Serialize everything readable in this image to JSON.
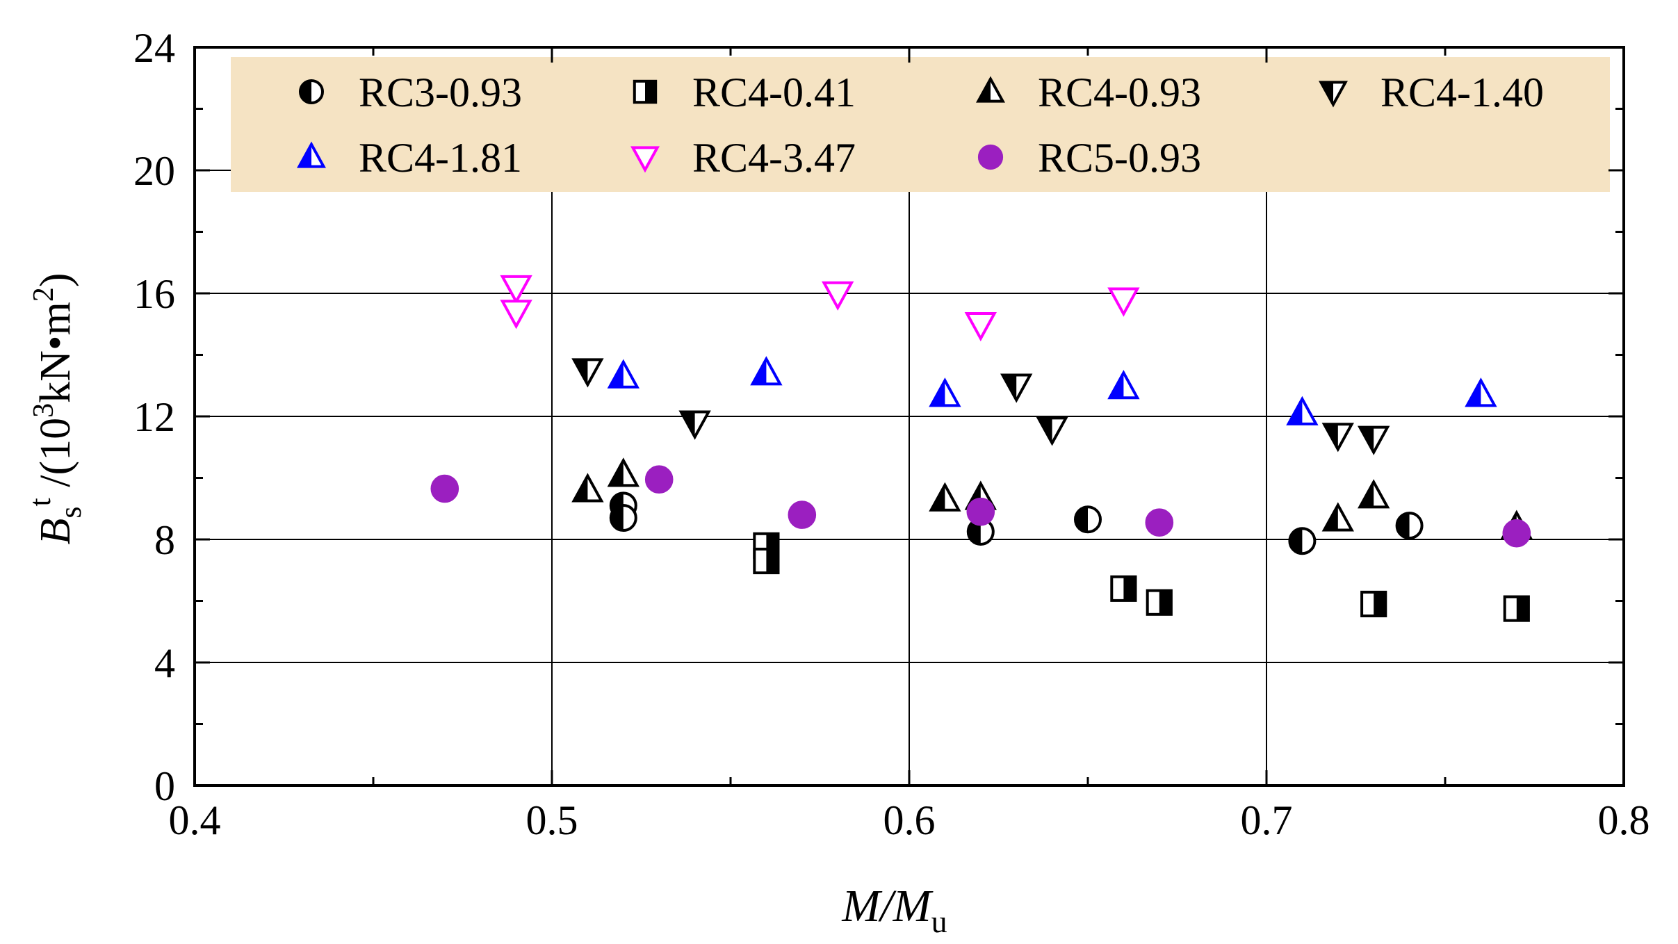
{
  "chart_data": {
    "type": "scatter",
    "title": "",
    "xlabel": {
      "main": "M/M",
      "sub": "u"
    },
    "ylabel": {
      "main": "B",
      "sub": "s",
      "sup": "t",
      "unit_prefix": " /(10",
      "unit_exp": "3",
      "unit_mid": "kN",
      "unit_dot": "•",
      "unit_m": "m",
      "unit_m_exp": "2",
      "unit_close": ")"
    },
    "xlim": [
      0.4,
      0.8
    ],
    "ylim": [
      0,
      24
    ],
    "xticks": [
      0.4,
      0.5,
      0.6,
      0.7,
      0.8
    ],
    "xtick_labels": [
      "0.4",
      "0.5",
      "0.6",
      "0.7",
      "0.8"
    ],
    "yticks": [
      0,
      4,
      8,
      12,
      16,
      20,
      24
    ],
    "ytick_labels": [
      "0",
      "4",
      "8",
      "12",
      "16",
      "20",
      "24"
    ],
    "grid": true,
    "legend_position": "top",
    "series": [
      {
        "name": "RC3-0.93",
        "marker": "circle-half",
        "color": "#000000",
        "points": [
          [
            0.52,
            9.1
          ],
          [
            0.52,
            8.7
          ],
          [
            0.62,
            8.25
          ],
          [
            0.65,
            8.65
          ],
          [
            0.71,
            7.95
          ],
          [
            0.74,
            8.45
          ]
        ]
      },
      {
        "name": "RC4-0.41",
        "marker": "square-half",
        "color": "#000000",
        "points": [
          [
            0.56,
            7.8
          ],
          [
            0.56,
            7.3
          ],
          [
            0.66,
            6.4
          ],
          [
            0.67,
            5.95
          ],
          [
            0.73,
            5.9
          ],
          [
            0.77,
            5.75
          ]
        ]
      },
      {
        "name": "RC4-0.93",
        "marker": "triangle-up-half",
        "color": "#000000",
        "points": [
          [
            0.51,
            9.6
          ],
          [
            0.52,
            10.1
          ],
          [
            0.61,
            9.3
          ],
          [
            0.62,
            9.35
          ],
          [
            0.72,
            8.65
          ],
          [
            0.73,
            9.4
          ],
          [
            0.77,
            8.4
          ]
        ]
      },
      {
        "name": "RC4-1.40",
        "marker": "triangle-down-half",
        "color": "#000000",
        "points": [
          [
            0.51,
            13.5
          ],
          [
            0.54,
            11.8
          ],
          [
            0.63,
            13.0
          ],
          [
            0.64,
            11.6
          ],
          [
            0.72,
            11.4
          ],
          [
            0.73,
            11.3
          ]
        ]
      },
      {
        "name": "RC4-1.81",
        "marker": "triangle-up-half",
        "color": "#0000ff",
        "points": [
          [
            0.52,
            13.3
          ],
          [
            0.56,
            13.4
          ],
          [
            0.61,
            12.7
          ],
          [
            0.66,
            12.95
          ],
          [
            0.71,
            12.1
          ],
          [
            0.76,
            12.7
          ]
        ]
      },
      {
        "name": "RC4-3.47",
        "marker": "triangle-down-open",
        "color": "#ff00ff",
        "points": [
          [
            0.49,
            16.2
          ],
          [
            0.49,
            15.4
          ],
          [
            0.58,
            16.0
          ],
          [
            0.62,
            15.0
          ],
          [
            0.66,
            15.8
          ]
        ]
      },
      {
        "name": "RC5-0.93",
        "marker": "circle-filled",
        "color": "#9b1fc0",
        "points": [
          [
            0.47,
            9.65
          ],
          [
            0.53,
            9.95
          ],
          [
            0.57,
            8.8
          ],
          [
            0.62,
            8.9
          ],
          [
            0.67,
            8.55
          ],
          [
            0.77,
            8.2
          ]
        ]
      }
    ],
    "legend_colors": {
      "background": "#f5e3c3"
    }
  }
}
